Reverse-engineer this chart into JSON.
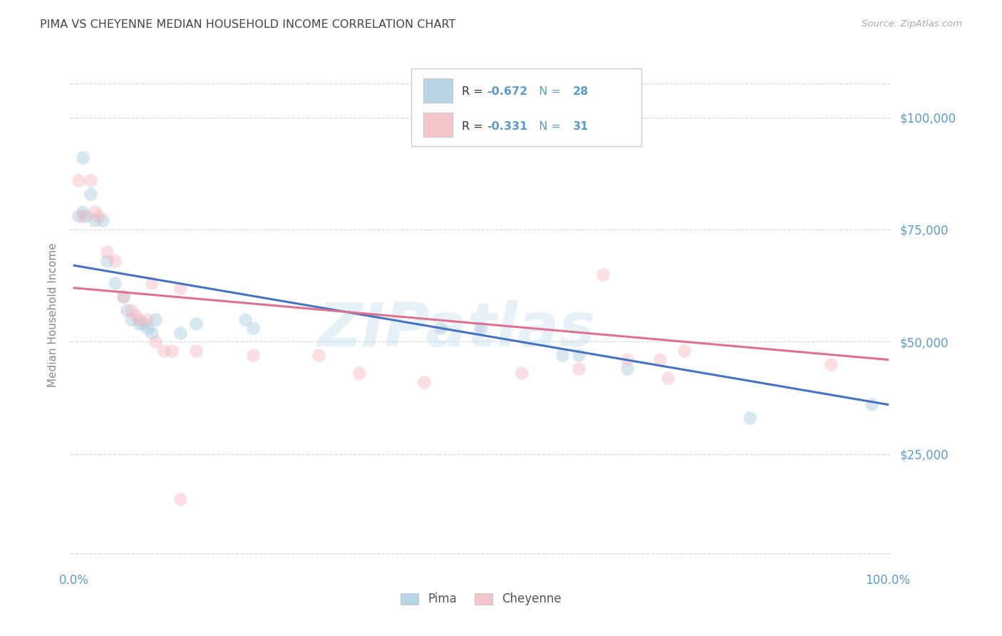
{
  "title": "PIMA VS CHEYENNE MEDIAN HOUSEHOLD INCOME CORRELATION CHART",
  "source": "Source: ZipAtlas.com",
  "ylabel": "Median Household Income",
  "ytick_labels": [
    "$25,000",
    "$50,000",
    "$75,000",
    "$100,000"
  ],
  "ytick_values": [
    25000,
    50000,
    75000,
    100000
  ],
  "ylim": [
    0,
    112000
  ],
  "xlim": [
    -0.005,
    1.005
  ],
  "watermark": "ZIPatlas",
  "legend_r_text": "R = ",
  "legend_blue_r": "-0.672",
  "legend_n_text": "  N = ",
  "legend_blue_n": "28",
  "legend_pink_r": "-0.331",
  "legend_pink_n": "31",
  "blue_color": "#a8cce0",
  "pink_color": "#f4b8c1",
  "blue_line_color": "#4472c4",
  "pink_line_color": "#e07090",
  "title_color": "#444444",
  "source_color": "#aaaaaa",
  "axis_label_color": "#5b9bd5",
  "legend_text_color": "#333333",
  "legend_value_color": "#5b9bd5",
  "pima_x": [
    0.01,
    0.02,
    0.01,
    0.005,
    0.015,
    0.025,
    0.035,
    0.04,
    0.05,
    0.06,
    0.065,
    0.07,
    0.08,
    0.085,
    0.09,
    0.095,
    0.1,
    0.13,
    0.15,
    0.21,
    0.22,
    0.45,
    0.5,
    0.6,
    0.62,
    0.68,
    0.83,
    0.98
  ],
  "pima_y": [
    91000,
    83000,
    79000,
    78000,
    78000,
    77000,
    77000,
    68000,
    63000,
    60000,
    57000,
    55000,
    54000,
    54000,
    53000,
    52000,
    55000,
    52000,
    54000,
    55000,
    53000,
    53000,
    53000,
    47000,
    47000,
    44000,
    33000,
    36000
  ],
  "cheyenne_x": [
    0.005,
    0.01,
    0.02,
    0.025,
    0.03,
    0.04,
    0.05,
    0.06,
    0.07,
    0.075,
    0.08,
    0.09,
    0.095,
    0.1,
    0.11,
    0.12,
    0.13,
    0.15,
    0.22,
    0.3,
    0.35,
    0.43,
    0.55,
    0.62,
    0.65,
    0.68,
    0.72,
    0.73,
    0.75,
    0.93,
    0.13
  ],
  "cheyenne_y": [
    86000,
    78000,
    86000,
    79000,
    78000,
    70000,
    68000,
    60000,
    57000,
    56000,
    55000,
    55000,
    63000,
    50000,
    48000,
    48000,
    62000,
    48000,
    47000,
    47000,
    43000,
    41000,
    43000,
    44000,
    65000,
    46000,
    46000,
    42000,
    48000,
    45000,
    15000
  ],
  "blue_line_x0": 0.0,
  "blue_line_x1": 1.0,
  "blue_line_y0": 67000,
  "blue_line_y1": 36000,
  "pink_line_x0": 0.0,
  "pink_line_x1": 1.0,
  "pink_line_y0": 62000,
  "pink_line_y1": 46000,
  "grid_color": "#d8d8d8",
  "bg_color": "#ffffff",
  "marker_size": 180,
  "alpha": 0.45
}
